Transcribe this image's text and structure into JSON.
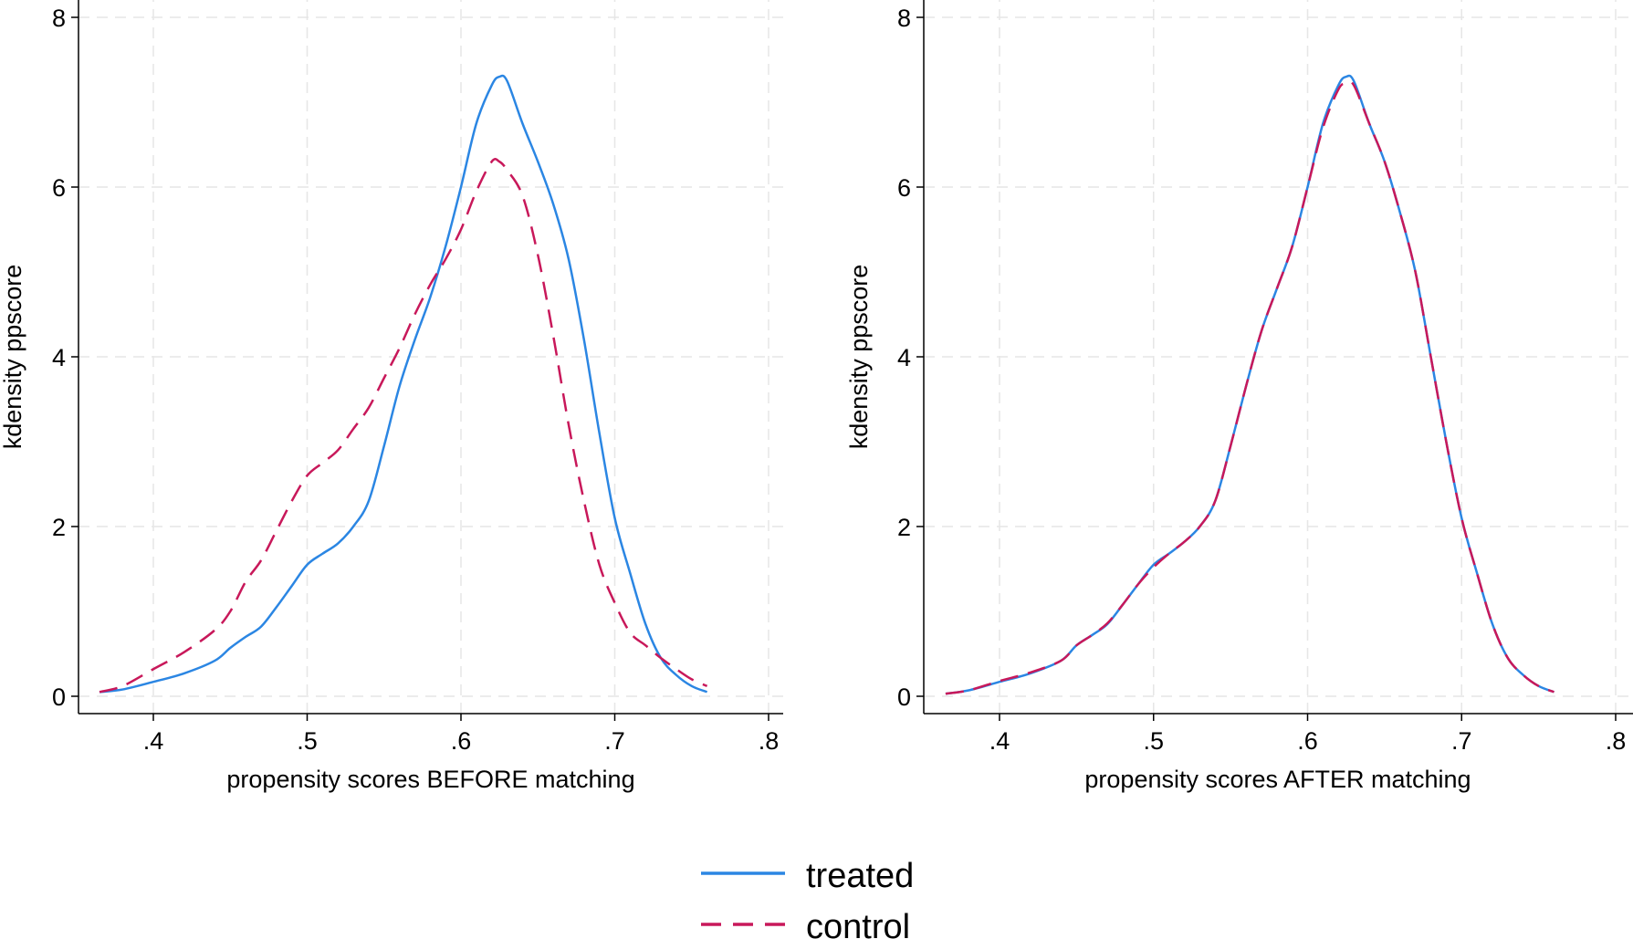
{
  "colors": {
    "treated": "#2b86e3",
    "control": "#c8185a",
    "grid": "#e6e6e6"
  },
  "legend": {
    "position": "bottom-center",
    "items": [
      {
        "label": "treated",
        "style": "solid"
      },
      {
        "label": "control",
        "style": "dashed"
      }
    ]
  },
  "chart_data": [
    {
      "type": "line",
      "title": "",
      "xlabel": "propensity scores BEFORE matching",
      "ylabel": "kdensity ppscore",
      "xlim": [
        0.35,
        0.8
      ],
      "ylim": [
        0,
        8
      ],
      "xticks": [
        0.4,
        0.5,
        0.6,
        0.7,
        0.8
      ],
      "xtick_labels": [
        ".4",
        ".5",
        ".6",
        ".7",
        ".8"
      ],
      "yticks": [
        0,
        2,
        4,
        6,
        8
      ],
      "ytick_labels": [
        "0",
        "2",
        "4",
        "6",
        "8"
      ],
      "grid": true,
      "series": [
        {
          "name": "treated",
          "style": "solid",
          "x": [
            0.365,
            0.38,
            0.4,
            0.42,
            0.44,
            0.45,
            0.46,
            0.47,
            0.48,
            0.49,
            0.5,
            0.51,
            0.52,
            0.53,
            0.54,
            0.55,
            0.56,
            0.57,
            0.58,
            0.59,
            0.6,
            0.61,
            0.62,
            0.625,
            0.63,
            0.64,
            0.65,
            0.66,
            0.67,
            0.68,
            0.69,
            0.7,
            0.71,
            0.72,
            0.73,
            0.74,
            0.75,
            0.76
          ],
          "y": [
            0.05,
            0.08,
            0.17,
            0.27,
            0.42,
            0.57,
            0.7,
            0.82,
            1.05,
            1.3,
            1.55,
            1.68,
            1.8,
            2.0,
            2.3,
            2.95,
            3.65,
            4.2,
            4.7,
            5.3,
            6.0,
            6.75,
            7.2,
            7.3,
            7.25,
            6.75,
            6.3,
            5.8,
            5.15,
            4.2,
            3.1,
            2.1,
            1.45,
            0.85,
            0.45,
            0.25,
            0.12,
            0.05
          ]
        },
        {
          "name": "control",
          "style": "dashed",
          "x": [
            0.365,
            0.38,
            0.4,
            0.42,
            0.44,
            0.45,
            0.46,
            0.47,
            0.48,
            0.49,
            0.5,
            0.51,
            0.52,
            0.53,
            0.54,
            0.55,
            0.56,
            0.57,
            0.58,
            0.59,
            0.6,
            0.61,
            0.62,
            0.625,
            0.63,
            0.64,
            0.65,
            0.66,
            0.67,
            0.68,
            0.69,
            0.7,
            0.71,
            0.72,
            0.73,
            0.74,
            0.75,
            0.76
          ],
          "y": [
            0.05,
            0.12,
            0.32,
            0.52,
            0.78,
            1.0,
            1.35,
            1.6,
            1.95,
            2.3,
            2.6,
            2.75,
            2.9,
            3.15,
            3.4,
            3.75,
            4.1,
            4.5,
            4.85,
            5.15,
            5.5,
            5.95,
            6.3,
            6.3,
            6.2,
            5.9,
            5.2,
            4.25,
            3.2,
            2.3,
            1.55,
            1.1,
            0.75,
            0.6,
            0.45,
            0.32,
            0.2,
            0.12
          ]
        }
      ]
    },
    {
      "type": "line",
      "title": "",
      "xlabel": "propensity scores AFTER matching",
      "ylabel": "kdensity ppscore",
      "xlim": [
        0.35,
        0.8
      ],
      "ylim": [
        0,
        8
      ],
      "xticks": [
        0.4,
        0.5,
        0.6,
        0.7,
        0.8
      ],
      "xtick_labels": [
        ".4",
        ".5",
        ".6",
        ".7",
        ".8"
      ],
      "yticks": [
        0,
        2,
        4,
        6,
        8
      ],
      "ytick_labels": [
        "0",
        "2",
        "4",
        "6",
        "8"
      ],
      "grid": true,
      "series": [
        {
          "name": "treated",
          "style": "solid",
          "x": [
            0.365,
            0.38,
            0.4,
            0.42,
            0.44,
            0.45,
            0.46,
            0.47,
            0.48,
            0.49,
            0.5,
            0.51,
            0.52,
            0.53,
            0.54,
            0.55,
            0.56,
            0.57,
            0.58,
            0.59,
            0.6,
            0.61,
            0.62,
            0.625,
            0.63,
            0.64,
            0.65,
            0.66,
            0.67,
            0.68,
            0.69,
            0.7,
            0.71,
            0.72,
            0.73,
            0.74,
            0.75,
            0.76
          ],
          "y": [
            0.03,
            0.07,
            0.17,
            0.27,
            0.42,
            0.6,
            0.72,
            0.85,
            1.08,
            1.32,
            1.55,
            1.68,
            1.82,
            2.0,
            2.3,
            2.95,
            3.65,
            4.3,
            4.8,
            5.3,
            6.0,
            6.75,
            7.2,
            7.3,
            7.25,
            6.75,
            6.3,
            5.7,
            5.0,
            4.0,
            3.0,
            2.1,
            1.45,
            0.85,
            0.45,
            0.25,
            0.12,
            0.05
          ]
        },
        {
          "name": "control",
          "style": "dashed",
          "x": [
            0.365,
            0.38,
            0.4,
            0.42,
            0.44,
            0.45,
            0.46,
            0.47,
            0.48,
            0.49,
            0.5,
            0.51,
            0.52,
            0.53,
            0.54,
            0.55,
            0.56,
            0.57,
            0.58,
            0.59,
            0.6,
            0.61,
            0.62,
            0.625,
            0.63,
            0.64,
            0.65,
            0.66,
            0.67,
            0.68,
            0.69,
            0.7,
            0.71,
            0.72,
            0.73,
            0.74,
            0.75,
            0.76
          ],
          "y": [
            0.03,
            0.07,
            0.18,
            0.28,
            0.42,
            0.6,
            0.72,
            0.86,
            1.08,
            1.32,
            1.52,
            1.68,
            1.82,
            2.0,
            2.3,
            2.95,
            3.65,
            4.3,
            4.8,
            5.3,
            6.0,
            6.7,
            7.15,
            7.22,
            7.2,
            6.75,
            6.3,
            5.7,
            5.0,
            4.0,
            3.0,
            2.1,
            1.45,
            0.85,
            0.45,
            0.25,
            0.12,
            0.05
          ]
        }
      ]
    }
  ]
}
